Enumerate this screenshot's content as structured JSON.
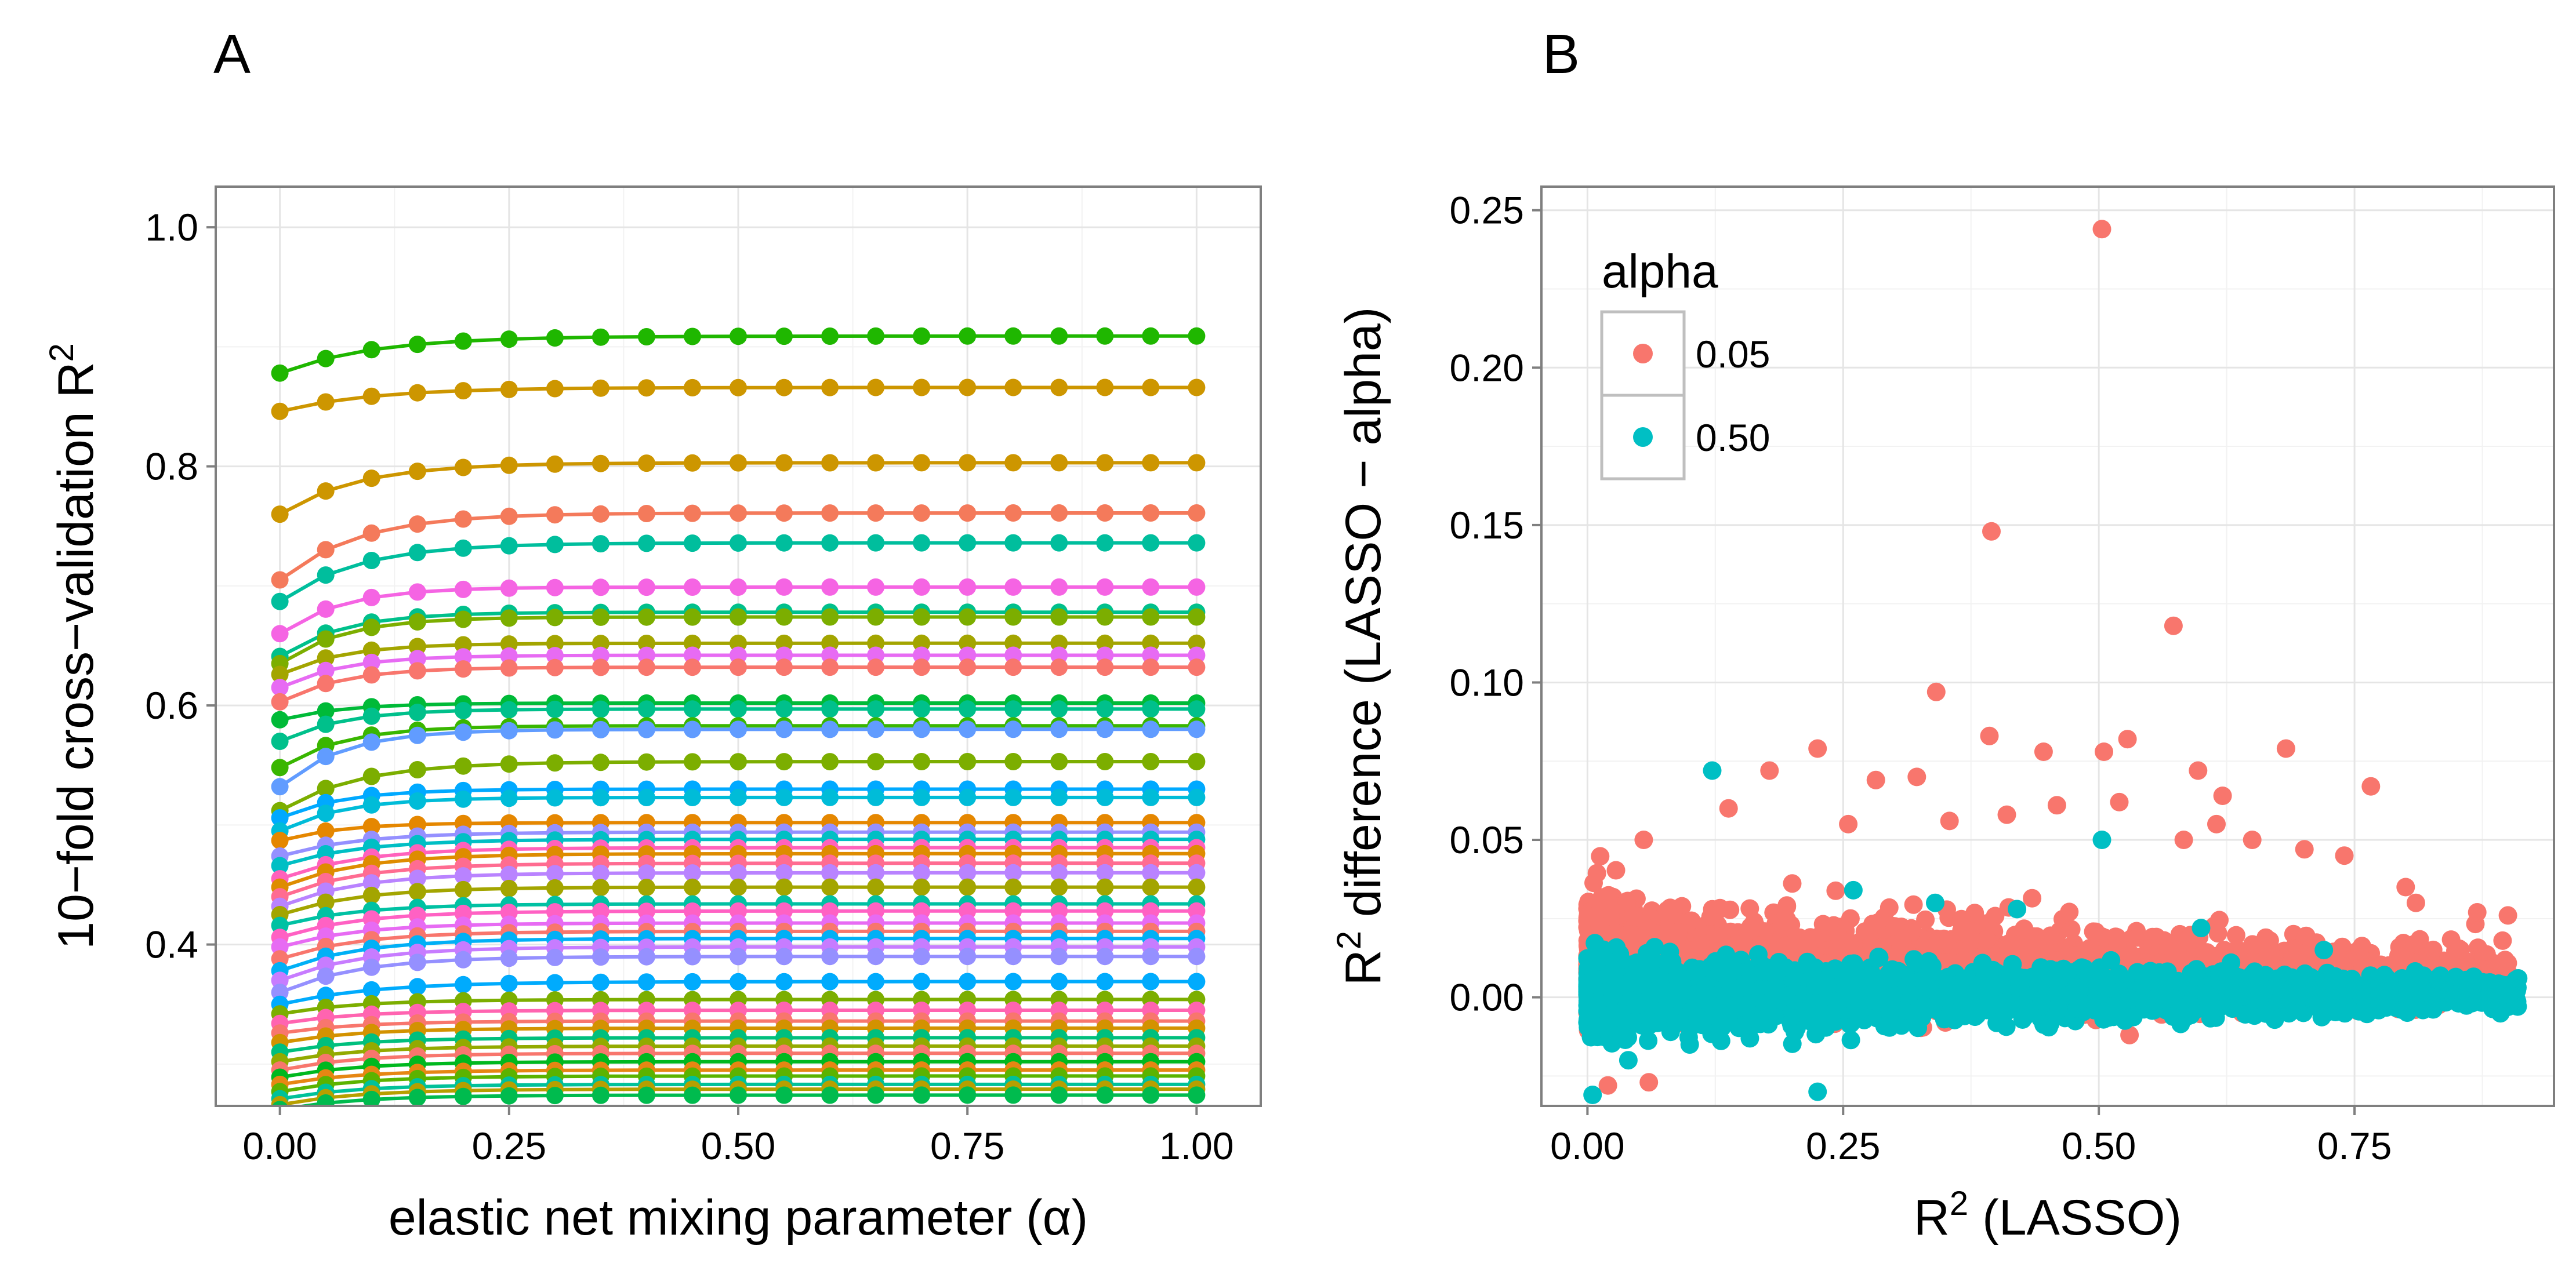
{
  "figure": {
    "panel_a_tag": "A",
    "panel_b_tag": "B"
  },
  "chart_data": [
    {
      "type": "line",
      "panel": "A",
      "xlabel": "elastic net mixing parameter (α)",
      "ylabel_main": "10−fold cross−validation R",
      "ylabel_sup": "2",
      "xlim": [
        -0.07,
        1.07
      ],
      "ylim": [
        0.265,
        1.034
      ],
      "x_ticks": [
        0.0,
        0.25,
        0.5,
        0.75,
        1.0
      ],
      "x_tick_labels": [
        "0.00",
        "0.25",
        "0.50",
        "0.75",
        "1.00"
      ],
      "y_ticks": [
        0.4,
        0.6,
        0.8,
        1.0
      ],
      "y_tick_labels": [
        "0.4",
        "0.6",
        "0.8",
        "1.0"
      ],
      "grid": true,
      "x": [
        0.0,
        0.05,
        0.1,
        0.15,
        0.2,
        0.25,
        0.3,
        0.35,
        0.4,
        0.45,
        0.5,
        0.55,
        0.6,
        0.65,
        0.7,
        0.75,
        0.8,
        0.85,
        0.9,
        0.95,
        1.0
      ],
      "series": [
        {
          "color": "#1FB700",
          "start": 0.878,
          "plateau": 0.909,
          "rise": 6
        },
        {
          "color": "#CD9600",
          "start": 0.846,
          "plateau": 0.866,
          "rise": 6
        },
        {
          "color": "#CD9600",
          "start": 0.76,
          "plateau": 0.803,
          "rise": 5
        },
        {
          "color": "#F47A5B",
          "start": 0.705,
          "plateau": 0.761,
          "rise": 5
        },
        {
          "color": "#00BE9D",
          "start": 0.687,
          "plateau": 0.736,
          "rise": 5
        },
        {
          "color": "#F564E3",
          "start": 0.66,
          "plateau": 0.699,
          "rise": 4
        },
        {
          "color": "#00C08B",
          "start": 0.641,
          "plateau": 0.678,
          "rise": 4
        },
        {
          "color": "#7CAE00",
          "start": 0.635,
          "plateau": 0.674,
          "rise": 4
        },
        {
          "color": "#A3A500",
          "start": 0.626,
          "plateau": 0.652,
          "rise": 4
        },
        {
          "color": "#E76BF3",
          "start": 0.615,
          "plateau": 0.642,
          "rise": 4
        },
        {
          "color": "#F8766D",
          "start": 0.603,
          "plateau": 0.632,
          "rise": 4
        },
        {
          "color": "#00BA38",
          "start": 0.588,
          "plateau": 0.602,
          "rise": 4
        },
        {
          "color": "#00C08B",
          "start": 0.57,
          "plateau": 0.597,
          "rise": 4
        },
        {
          "color": "#39B600",
          "start": 0.548,
          "plateau": 0.583,
          "rise": 4
        },
        {
          "color": "#619CFF",
          "start": 0.532,
          "plateau": 0.58,
          "rise": 4
        },
        {
          "color": "#7CAE00",
          "start": 0.512,
          "plateau": 0.553,
          "rise": 5
        },
        {
          "color": "#00A9FF",
          "start": 0.506,
          "plateau": 0.53,
          "rise": 4
        },
        {
          "color": "#00BCD8",
          "start": 0.495,
          "plateau": 0.523,
          "rise": 4
        },
        {
          "color": "#E58700",
          "start": 0.487,
          "plateau": 0.502,
          "rise": 4
        },
        {
          "color": "#9590FF",
          "start": 0.474,
          "plateau": 0.494,
          "rise": 5
        },
        {
          "color": "#00BFC4",
          "start": 0.466,
          "plateau": 0.488,
          "rise": 5
        },
        {
          "color": "#FF62BC",
          "start": 0.455,
          "plateau": 0.481,
          "rise": 5
        },
        {
          "color": "#DE8C00",
          "start": 0.448,
          "plateau": 0.476,
          "rise": 5
        },
        {
          "color": "#FF6C91",
          "start": 0.44,
          "plateau": 0.468,
          "rise": 5
        },
        {
          "color": "#B983FF",
          "start": 0.432,
          "plateau": 0.46,
          "rise": 5
        },
        {
          "color": "#A3A500",
          "start": 0.425,
          "plateau": 0.448,
          "rise": 5
        },
        {
          "color": "#00C1A3",
          "start": 0.416,
          "plateau": 0.434,
          "rise": 5
        },
        {
          "color": "#FF61C3",
          "start": 0.406,
          "plateau": 0.428,
          "rise": 5
        },
        {
          "color": "#E76BF3",
          "start": 0.398,
          "plateau": 0.418,
          "rise": 5
        },
        {
          "color": "#F8766D",
          "start": 0.388,
          "plateau": 0.411,
          "rise": 5
        },
        {
          "color": "#00B0F6",
          "start": 0.378,
          "plateau": 0.405,
          "rise": 5
        },
        {
          "color": "#C77CFF",
          "start": 0.37,
          "plateau": 0.398,
          "rise": 5
        },
        {
          "color": "#9590FF",
          "start": 0.36,
          "plateau": 0.39,
          "rise": 5
        },
        {
          "color": "#00ABFD",
          "start": 0.35,
          "plateau": 0.369,
          "rise": 6
        },
        {
          "color": "#7CAE00",
          "start": 0.342,
          "plateau": 0.354,
          "rise": 5
        },
        {
          "color": "#FF64B0",
          "start": 0.334,
          "plateau": 0.345,
          "rise": 5
        },
        {
          "color": "#F8766D",
          "start": 0.326,
          "plateau": 0.336,
          "rise": 5
        },
        {
          "color": "#D39200",
          "start": 0.318,
          "plateau": 0.33,
          "rise": 5
        },
        {
          "color": "#00BF7D",
          "start": 0.31,
          "plateau": 0.322,
          "rise": 5
        },
        {
          "color": "#93AA00",
          "start": 0.302,
          "plateau": 0.315,
          "rise": 5
        },
        {
          "color": "#F8766D",
          "start": 0.295,
          "plateau": 0.309,
          "rise": 5
        },
        {
          "color": "#00B81F",
          "start": 0.289,
          "plateau": 0.302,
          "rise": 5
        },
        {
          "color": "#E68613",
          "start": 0.283,
          "plateau": 0.295,
          "rise": 5
        },
        {
          "color": "#5BB300",
          "start": 0.277,
          "plateau": 0.29,
          "rise": 5
        },
        {
          "color": "#00C19A",
          "start": 0.271,
          "plateau": 0.283,
          "rise": 5
        },
        {
          "color": "#B79F00",
          "start": 0.266,
          "plateau": 0.279,
          "rise": 5
        },
        {
          "color": "#00BB4E",
          "start": 0.262,
          "plateau": 0.274,
          "rise": 5
        }
      ]
    },
    {
      "type": "scatter",
      "panel": "B",
      "xlabel_main": "R",
      "xlabel_sup": "2",
      "xlabel_rest": " (LASSO)",
      "ylabel_sup": "2",
      "ylabel_main": "R",
      "ylabel_rest": " difference (LASSO − alpha)",
      "xlim": [
        -0.045,
        0.945
      ],
      "ylim": [
        -0.0345,
        0.2575
      ],
      "x_ticks": [
        0.0,
        0.25,
        0.5,
        0.75
      ],
      "x_tick_labels": [
        "0.00",
        "0.25",
        "0.50",
        "0.75"
      ],
      "y_ticks": [
        0.0,
        0.05,
        0.1,
        0.15,
        0.2,
        0.25
      ],
      "y_tick_labels": [
        "0.00",
        "0.05",
        "0.10",
        "0.15",
        "0.20",
        "0.25"
      ],
      "grid": true,
      "legend": {
        "title": "alpha",
        "position": "top-left",
        "entries": [
          {
            "label": "0.05",
            "color": "#F8766D"
          },
          {
            "label": "0.50",
            "color": "#00BFC4"
          }
        ]
      },
      "series": [
        {
          "name": "0.05",
          "color": "#F8766D",
          "highlight_points": [
            [
              0.503,
              0.244
            ],
            [
              0.395,
              0.148
            ],
            [
              0.573,
              0.118
            ],
            [
              0.341,
              0.097
            ],
            [
              0.393,
              0.083
            ],
            [
              0.528,
              0.082
            ],
            [
              0.505,
              0.078
            ],
            [
              0.597,
              0.072
            ],
            [
              0.225,
              0.079
            ],
            [
              0.683,
              0.079
            ],
            [
              0.446,
              0.078
            ],
            [
              0.621,
              0.064
            ],
            [
              0.766,
              0.067
            ],
            [
              0.178,
              0.072
            ],
            [
              0.282,
              0.069
            ],
            [
              0.138,
              0.06
            ],
            [
              0.255,
              0.055
            ],
            [
              0.055,
              0.05
            ],
            [
              0.322,
              0.07
            ],
            [
              0.52,
              0.062
            ],
            [
              0.615,
              0.055
            ],
            [
              0.701,
              0.047
            ],
            [
              0.459,
              0.061
            ],
            [
              0.41,
              0.058
            ],
            [
              0.354,
              0.056
            ],
            [
              0.583,
              0.05
            ],
            [
              0.65,
              0.05
            ],
            [
              0.74,
              0.045
            ],
            [
              0.81,
              0.03
            ],
            [
              0.87,
              0.027
            ],
            [
              0.9,
              0.026
            ],
            [
              0.02,
              -0.028
            ],
            [
              0.06,
              -0.027
            ],
            [
              0.53,
              -0.012
            ],
            [
              0.35,
              -0.008
            ],
            [
              0.8,
              0.035
            ]
          ],
          "cloud": {
            "count": 3800,
            "x_range": [
              0.0,
              0.9
            ],
            "y_center": 0.004,
            "y_spread": 0.022,
            "seed": 11
          }
        },
        {
          "name": "0.50",
          "color": "#00BFC4",
          "highlight_points": [
            [
              0.122,
              0.072
            ],
            [
              0.503,
              0.05
            ],
            [
              0.225,
              -0.03
            ],
            [
              0.005,
              -0.031
            ],
            [
              0.04,
              -0.02
            ],
            [
              0.1,
              -0.015
            ],
            [
              0.26,
              0.034
            ],
            [
              0.34,
              0.03
            ],
            [
              0.42,
              0.028
            ],
            [
              0.6,
              0.022
            ],
            [
              0.72,
              0.015
            ],
            [
              0.91,
              0.006
            ]
          ],
          "cloud": {
            "count": 4200,
            "x_range": [
              0.0,
              0.91
            ],
            "y_center": 0.001,
            "y_spread": 0.01,
            "seed": 23
          }
        }
      ]
    }
  ]
}
